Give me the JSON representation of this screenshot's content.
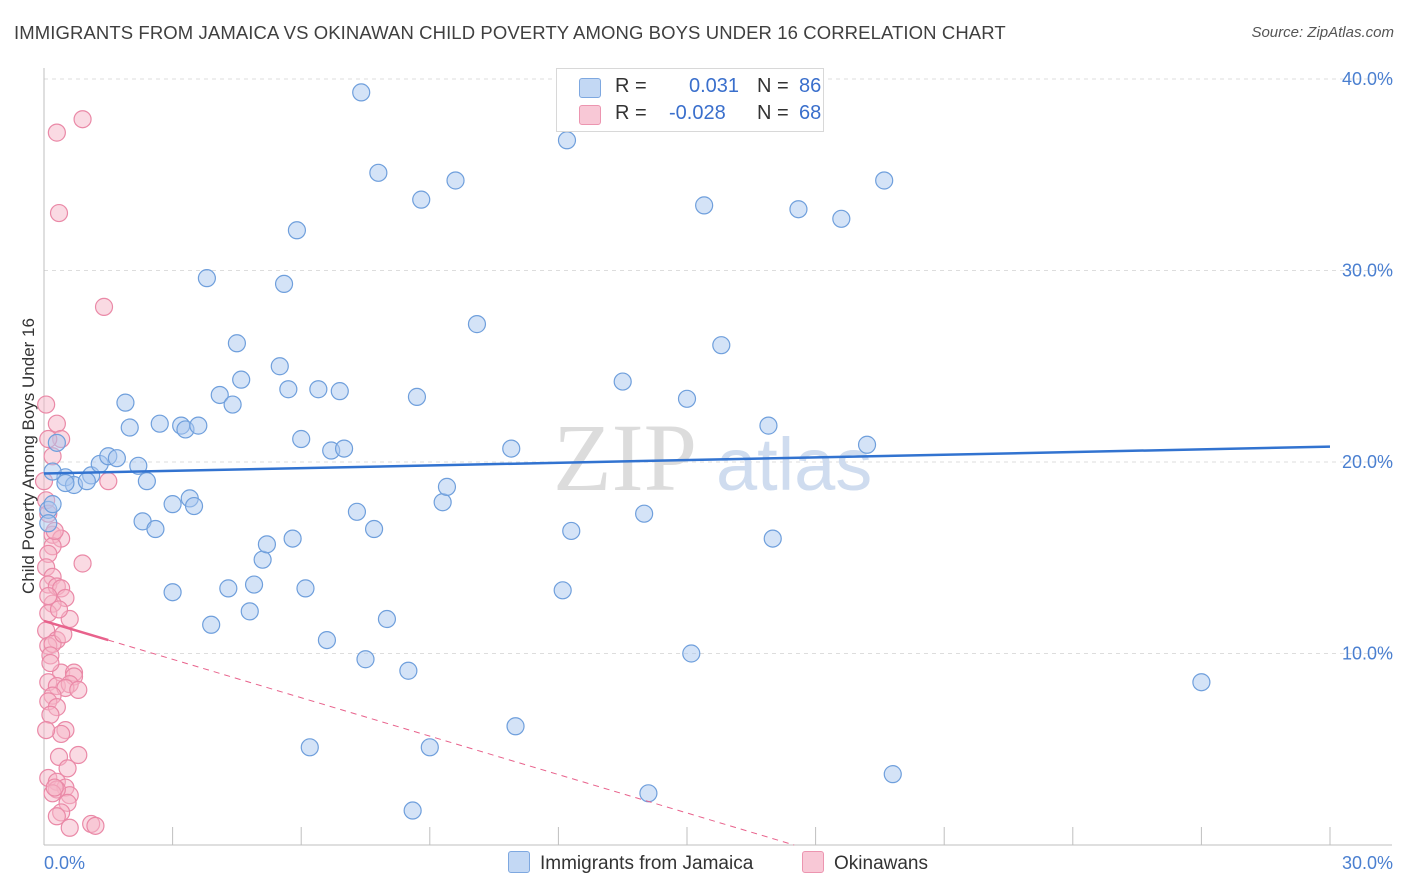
{
  "title": "IMMIGRANTS FROM JAMAICA VS OKINAWAN CHILD POVERTY AMONG BOYS UNDER 16 CORRELATION CHART",
  "source": "Source: ZipAtlas.com",
  "watermark": {
    "zip": "ZIP",
    "atlas": "atlas"
  },
  "legend": {
    "rows": [
      {
        "r_label": "R =",
        "r_value": "0.031",
        "n_label": "N =",
        "n_value": "86"
      },
      {
        "r_label": "R =",
        "r_value": "-0.028",
        "n_label": "N =",
        "n_value": "68"
      }
    ]
  },
  "colors": {
    "blue_fill": "#aac8f0",
    "blue_stroke": "#6f9fdc",
    "blue_line": "#3273d0",
    "pink_fill": "#f5b5c8",
    "pink_stroke": "#ea89a7",
    "pink_line": "#e8628c",
    "tick_text": "#4a7fd0",
    "grid": "#dddddd"
  },
  "chart_data": {
    "type": "scatter",
    "title": "IMMIGRANTS FROM JAMAICA VS OKINAWAN CHILD POVERTY AMONG BOYS UNDER 16 CORRELATION CHART",
    "xlabel": "",
    "ylabel": "Child Poverty Among Boys Under 16",
    "xlim": [
      0,
      30
    ],
    "ylim": [
      0,
      40
    ],
    "x_tick_labels": [
      "0.0%",
      "30.0%"
    ],
    "y_ticks": [
      10,
      20,
      30,
      40
    ],
    "y_tick_labels": [
      "10.0%",
      "20.0%",
      "30.0%",
      "40.0%"
    ],
    "grid": true,
    "series": [
      {
        "name": "Immigrants from Jamaica",
        "color": "#aac8f0",
        "r": 0.031,
        "n": 86,
        "trend": {
          "x": [
            0,
            30
          ],
          "y": [
            19.4,
            20.8
          ],
          "style": "solid"
        },
        "points": [
          [
            0.1,
            17.5
          ],
          [
            0.1,
            16.8
          ],
          [
            0.2,
            17.8
          ],
          [
            0.3,
            21.0
          ],
          [
            0.5,
            19.2
          ],
          [
            0.7,
            18.8
          ],
          [
            0.5,
            18.9
          ],
          [
            1.1,
            19.3
          ],
          [
            1.3,
            19.9
          ],
          [
            1.5,
            20.3
          ],
          [
            1.7,
            20.2
          ],
          [
            1.9,
            23.1
          ],
          [
            2.0,
            21.8
          ],
          [
            2.2,
            19.8
          ],
          [
            2.3,
            16.9
          ],
          [
            2.4,
            19.0
          ],
          [
            2.6,
            16.5
          ],
          [
            2.7,
            22.0
          ],
          [
            3.0,
            17.8
          ],
          [
            3.0,
            13.2
          ],
          [
            3.2,
            21.9
          ],
          [
            3.3,
            21.7
          ],
          [
            3.4,
            18.1
          ],
          [
            3.5,
            17.7
          ],
          [
            3.6,
            21.9
          ],
          [
            3.8,
            29.6
          ],
          [
            3.9,
            11.5
          ],
          [
            4.1,
            23.5
          ],
          [
            4.3,
            13.4
          ],
          [
            4.4,
            23.0
          ],
          [
            4.5,
            26.2
          ],
          [
            4.6,
            24.3
          ],
          [
            4.8,
            12.2
          ],
          [
            4.9,
            13.6
          ],
          [
            5.1,
            14.9
          ],
          [
            5.2,
            15.7
          ],
          [
            5.5,
            25.0
          ],
          [
            5.6,
            29.3
          ],
          [
            5.7,
            23.8
          ],
          [
            5.8,
            16.0
          ],
          [
            5.9,
            32.1
          ],
          [
            6.0,
            21.2
          ],
          [
            6.1,
            13.4
          ],
          [
            6.2,
            5.1
          ],
          [
            6.4,
            23.8
          ],
          [
            6.6,
            10.7
          ],
          [
            6.7,
            20.6
          ],
          [
            6.9,
            23.7
          ],
          [
            7.0,
            20.7
          ],
          [
            7.3,
            17.4
          ],
          [
            7.4,
            39.3
          ],
          [
            7.5,
            9.7
          ],
          [
            7.7,
            16.5
          ],
          [
            7.8,
            35.1
          ],
          [
            8.0,
            11.8
          ],
          [
            8.5,
            9.1
          ],
          [
            8.6,
            1.8
          ],
          [
            8.7,
            23.4
          ],
          [
            8.8,
            33.7
          ],
          [
            9.0,
            5.1
          ],
          [
            9.3,
            17.9
          ],
          [
            9.4,
            18.7
          ],
          [
            9.6,
            34.7
          ],
          [
            10.1,
            27.2
          ],
          [
            10.9,
            20.7
          ],
          [
            11.0,
            6.2
          ],
          [
            12.1,
            13.3
          ],
          [
            12.2,
            36.8
          ],
          [
            12.3,
            16.4
          ],
          [
            13.5,
            24.2
          ],
          [
            14.0,
            17.3
          ],
          [
            14.1,
            2.7
          ],
          [
            15.0,
            23.3
          ],
          [
            15.1,
            10.0
          ],
          [
            15.4,
            33.4
          ],
          [
            15.8,
            26.1
          ],
          [
            16.9,
            21.9
          ],
          [
            17.0,
            16.0
          ],
          [
            17.6,
            33.2
          ],
          [
            18.6,
            32.7
          ],
          [
            19.2,
            20.9
          ],
          [
            19.6,
            34.7
          ],
          [
            19.8,
            3.7
          ],
          [
            27.0,
            8.5
          ],
          [
            0.2,
            19.5
          ],
          [
            1.0,
            19.0
          ]
        ]
      },
      {
        "name": "Okinawans",
        "color": "#f5b5c8",
        "r": -0.028,
        "n": 68,
        "trend": {
          "x": [
            0,
            1.5
          ],
          "y": [
            11.7,
            10.7
          ],
          "style": "solid",
          "extended": {
            "x": [
              1.5,
              17.5
            ],
            "y": [
              10.7,
              0.0
            ]
          }
        },
        "points": [
          [
            0.3,
            37.2
          ],
          [
            0.9,
            37.9
          ],
          [
            0.35,
            33.0
          ],
          [
            1.4,
            28.1
          ],
          [
            0.05,
            23.0
          ],
          [
            0.3,
            22.0
          ],
          [
            0.4,
            21.2
          ],
          [
            0.1,
            21.2
          ],
          [
            0.2,
            20.3
          ],
          [
            0.0,
            19.0
          ],
          [
            1.5,
            19.0
          ],
          [
            0.05,
            18.0
          ],
          [
            0.1,
            17.3
          ],
          [
            0.2,
            16.2
          ],
          [
            0.4,
            16.0
          ],
          [
            0.2,
            15.6
          ],
          [
            0.1,
            15.2
          ],
          [
            0.05,
            14.5
          ],
          [
            0.9,
            14.7
          ],
          [
            0.2,
            14.0
          ],
          [
            0.1,
            13.6
          ],
          [
            0.3,
            13.5
          ],
          [
            0.4,
            13.4
          ],
          [
            0.5,
            12.9
          ],
          [
            0.2,
            12.6
          ],
          [
            0.1,
            12.1
          ],
          [
            0.6,
            11.8
          ],
          [
            0.05,
            11.2
          ],
          [
            0.3,
            10.7
          ],
          [
            0.1,
            10.4
          ],
          [
            0.2,
            10.5
          ],
          [
            0.15,
            9.9
          ],
          [
            0.4,
            9.0
          ],
          [
            0.7,
            9.0
          ],
          [
            0.7,
            8.8
          ],
          [
            0.1,
            8.5
          ],
          [
            0.3,
            8.3
          ],
          [
            0.6,
            8.4
          ],
          [
            0.5,
            8.2
          ],
          [
            0.8,
            8.1
          ],
          [
            0.2,
            7.8
          ],
          [
            0.1,
            7.5
          ],
          [
            0.3,
            7.2
          ],
          [
            0.15,
            6.8
          ],
          [
            0.5,
            6.0
          ],
          [
            0.4,
            5.8
          ],
          [
            0.8,
            4.7
          ],
          [
            0.35,
            4.6
          ],
          [
            0.55,
            4.0
          ],
          [
            0.1,
            3.5
          ],
          [
            0.3,
            3.3
          ],
          [
            0.5,
            3.0
          ],
          [
            0.6,
            2.6
          ],
          [
            0.3,
            2.9
          ],
          [
            0.2,
            2.7
          ],
          [
            0.55,
            2.2
          ],
          [
            0.4,
            1.7
          ],
          [
            0.3,
            1.5
          ],
          [
            0.6,
            0.9
          ],
          [
            1.1,
            1.1
          ],
          [
            1.2,
            1.0
          ],
          [
            0.25,
            3.0
          ],
          [
            0.15,
            9.5
          ],
          [
            0.45,
            11.0
          ],
          [
            0.35,
            12.3
          ],
          [
            0.1,
            13.0
          ],
          [
            0.25,
            16.4
          ],
          [
            0.05,
            6.0
          ]
        ]
      }
    ]
  },
  "bottom_legend": {
    "items": [
      {
        "label": "Immigrants from Jamaica"
      },
      {
        "label": "Okinawans"
      }
    ]
  }
}
